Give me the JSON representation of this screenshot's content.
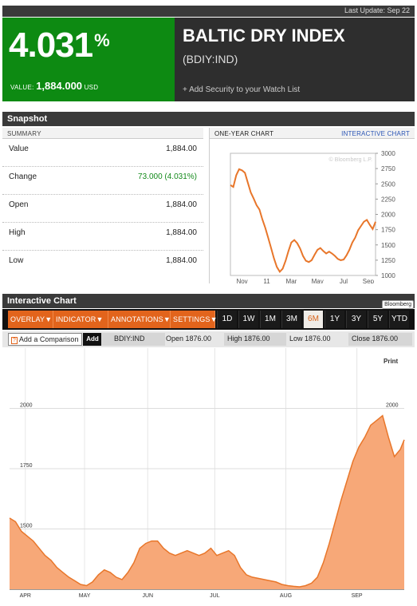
{
  "top": {
    "last_update": "Last Update: Sep 22"
  },
  "header": {
    "change_pct": "4.031",
    "pct_symbol": "%",
    "value_label": "VALUE:",
    "value": "1,884.000",
    "currency": "USD",
    "name": "BALTIC DRY INDEX",
    "ticker": "(BDIY:IND)",
    "watch_link": "+ Add Security to your Watch List"
  },
  "snapshot": {
    "title": "Snapshot",
    "summary_label": "SUMMARY",
    "rows": [
      {
        "label": "Value",
        "value": "1,884.00"
      },
      {
        "label": "Change",
        "value": "73.000 (4.031%)"
      },
      {
        "label": "Open",
        "value": "1,884.00"
      },
      {
        "label": "High",
        "value": "1,884.00"
      },
      {
        "label": "Low",
        "value": "1,884.00"
      }
    ],
    "one_year_label": "ONE-YEAR CHART",
    "interactive_link": "INTERACTIVE CHART"
  },
  "interactive": {
    "title": "Interactive Chart",
    "logo": "Bloomberg",
    "menus": [
      "OVERLAY",
      "INDICATOR",
      "ANNOTATIONS",
      "SETTINGS"
    ],
    "ranges": [
      "1D",
      "1W",
      "1M",
      "3M",
      "6M",
      "1Y",
      "3Y",
      "5Y",
      "YTD"
    ],
    "active_range": "6M",
    "compare_placeholder": "Add a Comparison",
    "compare_icon": "?",
    "add_label": "Add",
    "ticker": "BDIY:IND",
    "open": "Open 1876.00",
    "high": "High 1876.00",
    "low": "Low 1876.00",
    "close": "Close 1876.00",
    "print": "Print"
  },
  "colors": {
    "green": "#0d8a12",
    "orange": "#e2641c",
    "area": "#f7a878",
    "line": "#e8762a"
  },
  "chart_data": [
    {
      "type": "line",
      "title": "ONE-YEAR CHART",
      "watermark": "© Bloomberg L.P.",
      "x_ticks": [
        "Nov",
        "11",
        "Mar",
        "May",
        "Jul",
        "Sep"
      ],
      "y_ticks": [
        1000,
        1250,
        1500,
        1750,
        2000,
        2250,
        2500,
        2750,
        3000
      ],
      "ylim": [
        1000,
        3000
      ],
      "x": [
        0,
        2,
        4,
        6,
        8,
        10,
        12,
        14,
        16,
        18,
        20,
        22,
        24,
        26,
        28,
        30,
        32,
        34,
        36,
        38,
        40,
        42,
        44,
        46,
        48,
        50,
        52,
        54,
        56,
        58,
        60,
        62,
        64,
        66,
        68,
        70,
        72,
        74,
        76,
        78,
        80,
        82,
        84,
        86,
        88,
        90,
        92,
        94,
        96,
        98,
        100
      ],
      "values": [
        2480,
        2450,
        2640,
        2740,
        2720,
        2680,
        2520,
        2360,
        2260,
        2150,
        2080,
        1920,
        1780,
        1620,
        1450,
        1280,
        1140,
        1060,
        1110,
        1240,
        1400,
        1540,
        1580,
        1530,
        1440,
        1320,
        1240,
        1220,
        1250,
        1340,
        1420,
        1450,
        1400,
        1360,
        1390,
        1360,
        1320,
        1270,
        1250,
        1260,
        1330,
        1420,
        1540,
        1620,
        1740,
        1810,
        1880,
        1910,
        1830,
        1760,
        1880
      ]
    },
    {
      "type": "area",
      "title": "Interactive Chart",
      "x_ticks": [
        "APR",
        "MAY",
        "JUN",
        "JUL",
        "AUG",
        "SEP"
      ],
      "y_ticks": [
        1500,
        1750,
        2000
      ],
      "ylim": [
        1250,
        2250
      ],
      "x": [
        0,
        1.5,
        3,
        4.5,
        6,
        7.5,
        9,
        10.5,
        12,
        13.5,
        15,
        16.5,
        18,
        19.5,
        21,
        22.5,
        24,
        25.5,
        27,
        28.5,
        30,
        31.5,
        33,
        34.5,
        36,
        37.5,
        39,
        40.5,
        42,
        43.5,
        45,
        46.5,
        48,
        49.5,
        51,
        52.5,
        54,
        55.5,
        57,
        58.5,
        60,
        61.5,
        63,
        64.5,
        66,
        67.5,
        69,
        70.5,
        72,
        73.5,
        75,
        76.5,
        78,
        79.5,
        81,
        82.5,
        84,
        85.5,
        87,
        88.5,
        90,
        91.5,
        93,
        94.5,
        96,
        97.5,
        99,
        100
      ],
      "values": [
        1545,
        1530,
        1490,
        1470,
        1450,
        1420,
        1390,
        1370,
        1340,
        1320,
        1300,
        1285,
        1270,
        1265,
        1280,
        1310,
        1330,
        1320,
        1300,
        1290,
        1320,
        1360,
        1420,
        1440,
        1450,
        1450,
        1420,
        1400,
        1390,
        1400,
        1410,
        1400,
        1390,
        1400,
        1420,
        1390,
        1400,
        1410,
        1390,
        1340,
        1310,
        1300,
        1295,
        1290,
        1285,
        1280,
        1270,
        1265,
        1262,
        1260,
        1265,
        1275,
        1300,
        1360,
        1440,
        1530,
        1620,
        1700,
        1780,
        1840,
        1880,
        1930,
        1950,
        1970,
        1880,
        1800,
        1830,
        1870
      ]
    }
  ]
}
